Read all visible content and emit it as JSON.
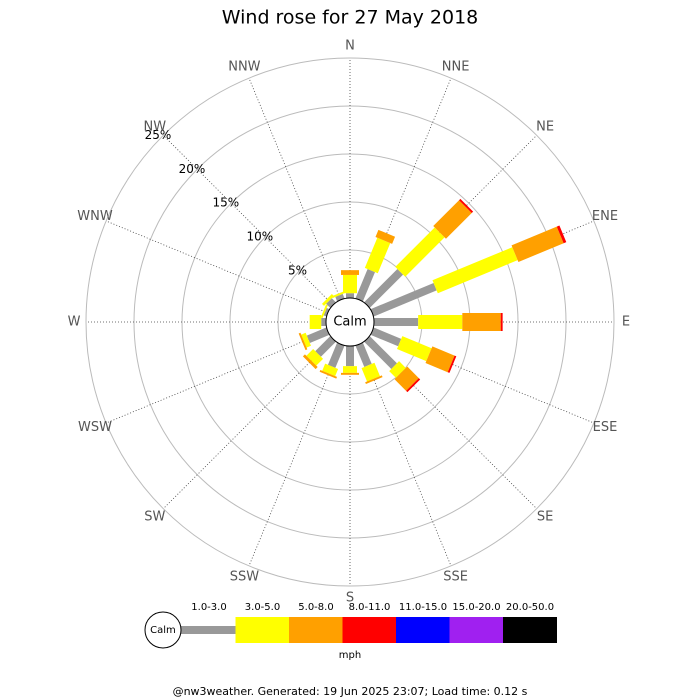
{
  "chart_data": {
    "type": "windrose",
    "title": "Wind rose for 27 May 2018",
    "directions": [
      "N",
      "NNE",
      "NE",
      "ENE",
      "E",
      "ESE",
      "SE",
      "SSE",
      "S",
      "SSW",
      "SW",
      "WSW",
      "W",
      "WNW",
      "NW",
      "NNW"
    ],
    "calm_label": "Calm",
    "rlim": [
      0,
      25
    ],
    "rticks": [
      {
        "value": 5,
        "label": "5%"
      },
      {
        "value": 10,
        "label": "10%"
      },
      {
        "value": 15,
        "label": "15%"
      },
      {
        "value": 20,
        "label": "20%"
      },
      {
        "value": 25,
        "label": "25%"
      }
    ],
    "series": [
      {
        "name": "1.0-3.0",
        "color": "#999999",
        "values": [
          0.5,
          3.3,
          4.9,
          7.1,
          4.6,
          3.1,
          4.0,
          2.4,
          2.1,
          2.5,
          2.2,
          2.2,
          0.5,
          0.3,
          0.6,
          0.5
        ]
      },
      {
        "name": "3.0-5.0",
        "color": "#ffff00",
        "values": [
          1.9,
          3.4,
          5.8,
          9.0,
          4.6,
          3.3,
          1.0,
          1.5,
          0.7,
          0.8,
          1.0,
          0.5,
          1.2,
          0.2,
          0.3,
          0.2
        ]
      },
      {
        "name": "5.0-8.0",
        "color": "#ffa000",
        "values": [
          0.5,
          0.8,
          3.8,
          5.1,
          4.0,
          2.5,
          1.7,
          0.2,
          0.2,
          0.2,
          0.3,
          0.2,
          0,
          0,
          0,
          0
        ]
      },
      {
        "name": "8.0-11.0",
        "color": "#ff0000",
        "values": [
          0,
          0,
          0.2,
          0.3,
          0.2,
          0.2,
          0.2,
          0,
          0,
          0,
          0,
          0,
          0,
          0,
          0,
          0
        ]
      },
      {
        "name": "11.0-15.0",
        "color": "#0000ff",
        "values": [
          0,
          0,
          0,
          0,
          0,
          0,
          0,
          0,
          0,
          0,
          0,
          0,
          0,
          0,
          0,
          0
        ]
      },
      {
        "name": "15.0-20.0",
        "color": "#a020f0",
        "values": [
          0,
          0,
          0,
          0,
          0,
          0,
          0,
          0,
          0,
          0,
          0,
          0,
          0,
          0,
          0,
          0
        ]
      },
      {
        "name": "20.0-50.0",
        "color": "#000000",
        "values": [
          0,
          0,
          0,
          0,
          0,
          0,
          0,
          0,
          0,
          0,
          0,
          0,
          0,
          0,
          0,
          0
        ]
      }
    ],
    "legend_title": "mph",
    "footer": "@nw3weather. Generated: 19 Jun 2025 23:07; Load time: 0.12 s"
  }
}
